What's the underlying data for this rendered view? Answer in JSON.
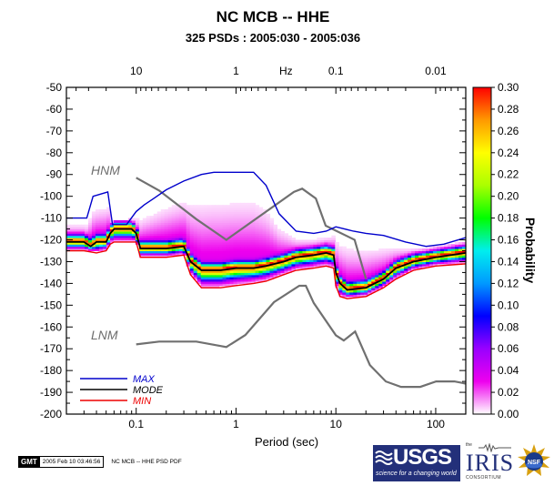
{
  "chart_data": {
    "type": "heatmap",
    "title": "NC MCB -- HHE",
    "subtitle": "325 PSDs : 2005:030 - 2005:036",
    "xlabel": "Period (sec)",
    "top_axis_label": "Hz",
    "ylabel": "",
    "x_scale": "log",
    "xlim": [
      0.02,
      200
    ],
    "ylim": [
      -200,
      -50
    ],
    "x_ticks": [
      0.1,
      1,
      10,
      100
    ],
    "x_tick_labels": [
      "0.1",
      "1",
      "10",
      "100"
    ],
    "top_ticks_hz": [
      10,
      1,
      0.1,
      0.01
    ],
    "top_tick_labels": [
      "10",
      "1",
      "Hz",
      "0.1",
      "0.01"
    ],
    "y_ticks": [
      -50,
      -60,
      -70,
      -80,
      -90,
      -100,
      -110,
      -120,
      -130,
      -140,
      -150,
      -160,
      -170,
      -180,
      -190,
      -200
    ],
    "y_tick_labels": [
      "-50",
      "-60",
      "-70",
      "-80",
      "-90",
      "-100",
      "-110",
      "-120",
      "-130",
      "-140",
      "-150",
      "-160",
      "-170",
      "-180",
      "-190",
      "-200"
    ],
    "colorbar": {
      "label": "Probability",
      "range": [
        0,
        0.3
      ],
      "ticks": [
        0.3,
        0.28,
        0.26,
        0.24,
        0.22,
        0.2,
        0.18,
        0.16,
        0.14,
        0.12,
        0.1,
        0.08,
        0.06,
        0.04,
        0.02,
        0.0
      ],
      "tick_labels": [
        "0.30",
        "0.28",
        "0.26",
        "0.24",
        "0.22",
        "0.20",
        "0.18",
        "0.16",
        "0.14",
        "0.12",
        "0.10",
        "0.08",
        "0.06",
        "0.04",
        "0.02",
        "0.00"
      ],
      "colors": [
        "#ffffff",
        "#ee00ee",
        "#9900ff",
        "#0000ff",
        "#0099ff",
        "#00eeee",
        "#00ff00",
        "#aaff00",
        "#ffff00",
        "#ff9900",
        "#ff0000"
      ]
    },
    "series": [
      {
        "name": "MAX",
        "color": "#0000cc",
        "x": [
          0.02,
          0.032,
          0.037,
          0.052,
          0.058,
          0.08,
          0.1,
          0.12,
          0.15,
          0.2,
          0.3,
          0.45,
          0.6,
          1.0,
          1.5,
          2.0,
          2.7,
          4,
          6,
          8,
          10,
          15,
          20,
          30,
          50,
          80,
          120,
          200
        ],
        "y": [
          -110,
          -110,
          -100,
          -98,
          -113,
          -113,
          -107,
          -104,
          -101,
          -97,
          -93,
          -90,
          -89,
          -89,
          -89,
          -95,
          -108,
          -116,
          -117,
          -116,
          -114,
          -116,
          -117,
          -118,
          -121,
          -123,
          -122,
          -119
        ]
      },
      {
        "name": "MODE",
        "color": "#000000",
        "x": [
          0.02,
          0.03,
          0.035,
          0.04,
          0.05,
          0.055,
          0.06,
          0.09,
          0.1,
          0.11,
          0.2,
          0.3,
          0.35,
          0.45,
          0.7,
          1.0,
          1.5,
          2.0,
          3,
          4,
          6,
          8,
          9.5,
          10,
          11,
          13,
          20,
          30,
          40,
          60,
          100,
          200
        ],
        "y": [
          -121,
          -121,
          -123,
          -121,
          -121,
          -117,
          -115,
          -115,
          -117,
          -124,
          -124,
          -123,
          -130,
          -134,
          -134,
          -133,
          -133,
          -132,
          -130,
          -128,
          -127,
          -126,
          -127,
          -135,
          -140,
          -143,
          -142,
          -138,
          -133,
          -130,
          -128,
          -126
        ]
      },
      {
        "name": "MIN",
        "color": "#ee0000",
        "x": [
          0.02,
          0.03,
          0.04,
          0.05,
          0.055,
          0.06,
          0.09,
          0.1,
          0.11,
          0.2,
          0.3,
          0.35,
          0.45,
          0.7,
          1.0,
          1.5,
          2.0,
          3,
          4,
          6,
          8,
          9.5,
          10,
          11,
          13,
          20,
          30,
          40,
          60,
          100,
          200
        ],
        "y": [
          -125,
          -125,
          -126,
          -125,
          -122,
          -121,
          -121,
          -121,
          -128,
          -128,
          -127,
          -136,
          -142,
          -142,
          -141,
          -140,
          -139,
          -136,
          -134,
          -133,
          -132,
          -133,
          -141,
          -146,
          -147,
          -146,
          -142,
          -138,
          -134,
          -132,
          -131
        ]
      },
      {
        "name": "HNM",
        "color": "#707070",
        "x": [
          0.1,
          0.17,
          0.4,
          0.8,
          3.8,
          4.6,
          6.3,
          7.9,
          15.4,
          20
        ],
        "y": [
          -91.5,
          -97.4,
          -110.5,
          -120,
          -98,
          -96.5,
          -101,
          -113.5,
          -120,
          -138
        ]
      },
      {
        "name": "LNM",
        "color": "#707070",
        "x": [
          0.1,
          0.17,
          0.4,
          0.8,
          1.24,
          2.4,
          4.3,
          5.0,
          6.0,
          10.0,
          12.0,
          15.6,
          21.9,
          31.6,
          45,
          70,
          101,
          154,
          200
        ],
        "y": [
          -168,
          -166.7,
          -166.7,
          -169.2,
          -163.7,
          -148.6,
          -141.1,
          -141.1,
          -149.0,
          -163.8,
          -166.2,
          -162.1,
          -177.5,
          -185,
          -187.5,
          -187.5,
          -185,
          -185,
          -186
        ]
      }
    ],
    "legend": {
      "placement": "bottom-left",
      "entries": [
        "MAX",
        "MODE",
        "MIN"
      ]
    },
    "model_labels": [
      "HNM",
      "LNM"
    ],
    "grid": false
  },
  "footer": {
    "gmt_badge": "GMT",
    "timestamp": "2005 Feb 10 03:46:56",
    "caption": "NC MCB -- HHE PSD PDF"
  },
  "logos": {
    "usgs": "USGS",
    "usgs_tagline": "science for a changing world",
    "iris_prefix": "the",
    "iris": "IRIS",
    "iris_sub": "CONSORTIUM",
    "nsf": "NSF"
  }
}
